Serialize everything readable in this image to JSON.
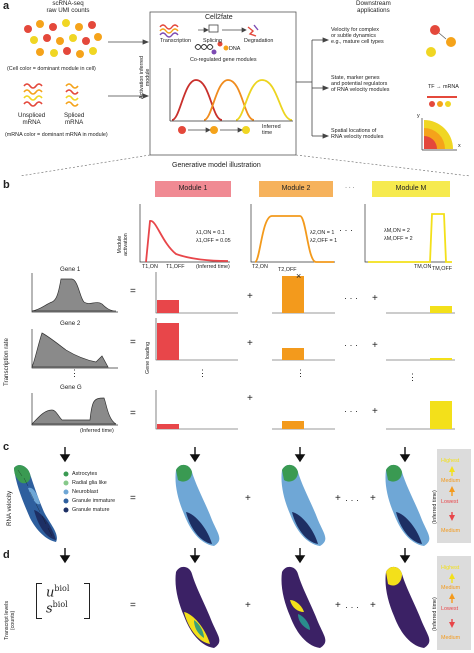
{
  "panel_a": {
    "label": "a",
    "input_title": "scRNA-seq\nraw UMI counts",
    "cell_color_note": "(Cell color = dominant module in cell)",
    "unspliced": "Unspliced\nmRNA",
    "spliced": "Spliced\nmRNA",
    "mrna_color_note": "(mRNA color = dominant mRNA in module)",
    "cell2fate_title": "Cell2fate",
    "transcription": "Transcription",
    "splicing": "Splicing",
    "degradation": "Degradation",
    "dna": "DNA",
    "co_regulated": "Co-regulated gene modules",
    "activation_axis": "Activation inferred\nmodule",
    "inferred_time": "Inferred\ntime",
    "downstream_title": "Downstream\napplications",
    "app1": "Velocity for complex\nor subtle dynamics\ne.g., mature cell types",
    "app2": "State, marker genes\nand potential regulators\nof RNA velocity modules",
    "app3": "Spatial locations of\nRNA velocity modules",
    "tf_mrna": "TF → mRNA",
    "x_label": "x",
    "y_label": "y"
  },
  "generative_title": "Generative model illustration",
  "panel_b": {
    "label": "b",
    "module1": "Module 1",
    "module2": "Module 2",
    "moduleM": "Module M",
    "dots": "· · ·",
    "module_activation": "Module\nactivation",
    "lambda_1on": "λ1,ON = 0.1",
    "lambda_1off": "λ1,OFF = 0.05",
    "lambda_2on": "λ2,ON = 1",
    "lambda_2off": "λ2,OFF = 1",
    "lambda_mon": "λM,ON = 2",
    "lambda_moff": "λM,OFF = 2",
    "t1on": "T1,ON",
    "t1off": "T1,OFF",
    "t2on": "T2,ON",
    "t2off": "T2,OFF",
    "tmon": "TM,ON",
    "tmoff": "TM,OFF",
    "inferred_time_paren": "(Inferred time)",
    "times": "×",
    "gene1": "Gene 1",
    "gene2": "Gene 2",
    "geneG": "Gene G",
    "transcription_rate": "Transcription rate",
    "gene_loading": "Gene loading",
    "equals": "=",
    "plus": "+",
    "vdots": "⋮"
  },
  "panel_c": {
    "label": "c",
    "rna_velocity": "RNA velocity",
    "legend": [
      "Astrocytes",
      "Radial glia like",
      "Neuroblast",
      "Granule immature",
      "Granule mature"
    ],
    "legend_colors": [
      "#3a9a52",
      "#86c98a",
      "#6fa7d6",
      "#2e5f9e",
      "#1d2f64"
    ],
    "highest": "Highest",
    "medium": "Medium",
    "lowest": "Lowest",
    "inferred_time_side": "(Inferred time)"
  },
  "panel_d": {
    "label": "d",
    "transcript_levels": "Transcript levels\n(counts)",
    "u_biol": "u",
    "s_biol": "s",
    "biol": "biol"
  },
  "colors": {
    "module1": "#e8464a",
    "module1_bg": "#f08a93",
    "module2": "#f39a1c",
    "module2_bg": "#f6b25c",
    "moduleM": "#f3e01a",
    "moduleM_bg": "#f6ea4e",
    "sidebar_bg": "#dcdcdc"
  }
}
